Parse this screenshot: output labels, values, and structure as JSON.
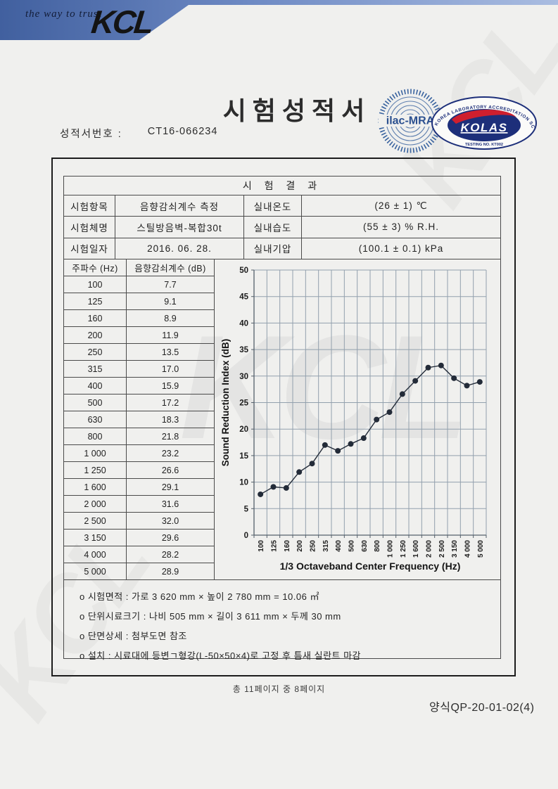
{
  "brand": {
    "tagline": "the way to trust",
    "logo_text": "KCL"
  },
  "title": "시험성적서",
  "report_no": {
    "label": "성적서번호 :",
    "value": "CT16-066234"
  },
  "cert": {
    "ilac_text": "ilac-MRA",
    "kolas_ring_text": "KOREA LABORATORY ACCREDITATION SCHEME",
    "kolas_text": "KOLAS",
    "kolas_sub_text": "TESTING NO. KT002"
  },
  "results": {
    "header": "시 험 결 과",
    "info_rows": [
      {
        "label": "시험항목",
        "value": "음향감쇠계수 측정",
        "label2": "실내온도",
        "value2": "(26 ± 1) ℃"
      },
      {
        "label": "시험체명",
        "value": "스틸방음벽-복합30t",
        "label2": "실내습도",
        "value2": "(55 ± 3) % R.H."
      },
      {
        "label": "시험일자",
        "value": "2016. 06. 28.",
        "label2": "실내기압",
        "value2": "(100.1 ± 0.1) kPa"
      }
    ],
    "freq_table": {
      "headers": [
        "주파수 (Hz)",
        "음향감쇠계수 (dB)"
      ],
      "rows": [
        [
          "100",
          "7.7"
        ],
        [
          "125",
          "9.1"
        ],
        [
          "160",
          "8.9"
        ],
        [
          "200",
          "11.9"
        ],
        [
          "250",
          "13.5"
        ],
        [
          "315",
          "17.0"
        ],
        [
          "400",
          "15.9"
        ],
        [
          "500",
          "17.2"
        ],
        [
          "630",
          "18.3"
        ],
        [
          "800",
          "21.8"
        ],
        [
          "1 000",
          "23.2"
        ],
        [
          "1 250",
          "26.6"
        ],
        [
          "1 600",
          "29.1"
        ],
        [
          "2 000",
          "31.6"
        ],
        [
          "2 500",
          "32.0"
        ],
        [
          "3 150",
          "29.6"
        ],
        [
          "4 000",
          "28.2"
        ],
        [
          "5 000",
          "28.9"
        ]
      ]
    },
    "notes": [
      "o 시험면적 : 가로 3 620 mm × 높이 2 780 mm = 10.06 ㎡",
      "o 단위시료크기 : 나비 505 mm × 길이 3 611 mm × 두께 30 mm",
      "o 단면상세 : 첨부도면 참조",
      "o 설치 : 시료대에 등변ㄱ형강(L-50×50×4)로 고정 후 틈새 실란트 마감"
    ]
  },
  "chart_data": {
    "type": "line",
    "categories": [
      "100",
      "125",
      "160",
      "200",
      "250",
      "315",
      "400",
      "500",
      "630",
      "800",
      "1 000",
      "1 250",
      "1 600",
      "2 000",
      "2 500",
      "3 150",
      "4 000",
      "5 000"
    ],
    "values": [
      7.7,
      9.1,
      8.9,
      11.9,
      13.5,
      17.0,
      15.9,
      17.2,
      18.3,
      21.8,
      23.2,
      26.6,
      29.1,
      31.6,
      32.0,
      29.6,
      28.2,
      28.9
    ],
    "xlabel": "1/3 Octaveband Center Frequency (Hz)",
    "ylabel": "Sound Reduction Index (dB)",
    "ylim": [
      0,
      50
    ],
    "ytick_step": 5,
    "grid": true,
    "legend": "none",
    "line_color": "#232b38",
    "marker": "circle"
  },
  "footer": {
    "page_info": "총 11페이지 중 8페이지",
    "form_no": "양식QP-20-01-02(4)"
  },
  "colors": {
    "band_left": "#41609f",
    "band_right": "#aabde1",
    "grid": "#92a0ad",
    "axis": "#55606b",
    "logo_blue": "#2a4f8f",
    "kolas_navy": "#1d2f7a",
    "kolas_red": "#cf1f2e"
  }
}
